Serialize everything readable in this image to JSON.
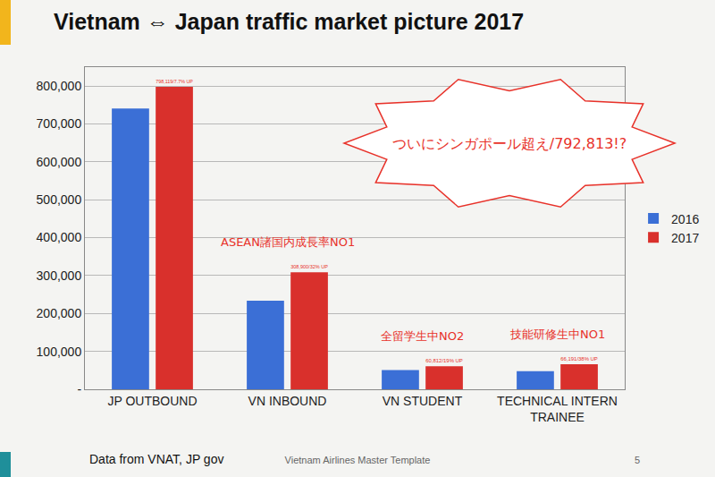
{
  "chart_data": {
    "type": "bar",
    "title": "Vietnam ⇔ Japan traffic market picture 2017",
    "categories": [
      "JP OUTBOUND",
      "VN INBOUND",
      "VN STUDENT",
      "TECHNICAL INTERN TRAINEE"
    ],
    "series": [
      {
        "name": "2016",
        "color": "#3b6fd6",
        "values": [
          741000,
          234000,
          51000,
          48000
        ]
      },
      {
        "name": "2017",
        "color": "#d9302c",
        "values": [
          798119,
          308900,
          60812,
          66191
        ],
        "value_labels": [
          "798,119/7.7% UP",
          "308,900/32% UP",
          "60,812/19% UP",
          "66,191/38% UP"
        ]
      }
    ],
    "ylim": [
      0,
      850000
    ],
    "yticks": [
      {
        "value": 0,
        "label": "-"
      },
      {
        "value": 100000,
        "label": "100,000"
      },
      {
        "value": 200000,
        "label": "200,000"
      },
      {
        "value": 300000,
        "label": "300,000"
      },
      {
        "value": 400000,
        "label": "400,000"
      },
      {
        "value": 500000,
        "label": "500,000"
      },
      {
        "value": 600000,
        "label": "600,000"
      },
      {
        "value": 700000,
        "label": "700,000"
      },
      {
        "value": 800000,
        "label": "800,000"
      }
    ],
    "grid": true,
    "legend": "right",
    "data_labels": true,
    "annotations": [
      {
        "text": "ASEAN諸国内成長率NO1",
        "category": "VN INBOUND"
      },
      {
        "text": "全留学生中NO2",
        "category": "VN STUDENT"
      },
      {
        "text": "技能研修生中NO1",
        "category": "TECHNICAL INTERN TRAINEE"
      }
    ],
    "callout": {
      "text": "ついにシンガポール超え/792,813!?"
    }
  },
  "footer": {
    "source": "Data from VNAT, JP gov",
    "template": "Vietnam Airlines Master Template",
    "page": 5
  }
}
